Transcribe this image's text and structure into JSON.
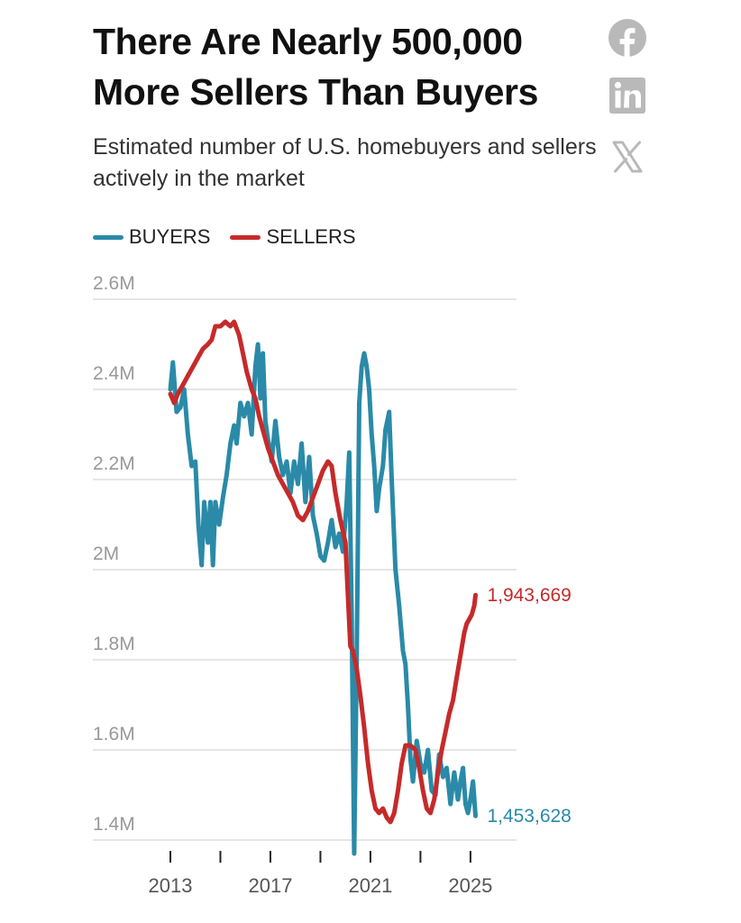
{
  "header": {
    "title": "There Are Nearly 500,000 More Sellers Than Buyers",
    "subtitle": "Estimated number of U.S. homebuyers and sellers actively in the market"
  },
  "share": {
    "facebook_icon": "facebook-icon",
    "linkedin_icon": "linkedin-icon",
    "x_icon": "x-icon"
  },
  "colors": {
    "buyers": "#2a8aa8",
    "sellers": "#c62a2a",
    "grid": "#dddddd",
    "tick_label": "#999999",
    "share_icon": "#b9b9b9"
  },
  "chart_data": {
    "type": "line",
    "title": "There Are Nearly 500,000 More Sellers Than Buyers",
    "subtitle": "Estimated number of U.S. homebuyers and sellers actively in the market",
    "xlabel": "",
    "ylabel": "",
    "xlim": [
      2013,
      2025.4
    ],
    "ylim": [
      1350000,
      2600000
    ],
    "y_ticks": [
      {
        "value": 2600000,
        "label": "2.6M"
      },
      {
        "value": 2400000,
        "label": "2.4M"
      },
      {
        "value": 2200000,
        "label": "2.2M"
      },
      {
        "value": 2000000,
        "label": "2M"
      },
      {
        "value": 1800000,
        "label": "1.8M"
      },
      {
        "value": 1600000,
        "label": "1.6M"
      },
      {
        "value": 1400000,
        "label": "1.4M"
      }
    ],
    "x_ticks": [
      {
        "value": 2013,
        "label": "2013"
      },
      {
        "value": 2015,
        "label": ""
      },
      {
        "value": 2017,
        "label": "2017"
      },
      {
        "value": 2019,
        "label": ""
      },
      {
        "value": 2021,
        "label": "2021"
      },
      {
        "value": 2023,
        "label": ""
      },
      {
        "value": 2025,
        "label": "2025"
      }
    ],
    "grid": true,
    "legend_position": "top-left",
    "series": [
      {
        "name": "BUYERS",
        "key": "buyers",
        "end_label": "1,453,628",
        "points": [
          [
            2013.0,
            2400000
          ],
          [
            2013.1,
            2460000
          ],
          [
            2013.25,
            2350000
          ],
          [
            2013.4,
            2360000
          ],
          [
            2013.55,
            2400000
          ],
          [
            2013.7,
            2300000
          ],
          [
            2013.85,
            2230000
          ],
          [
            2014.0,
            2240000
          ],
          [
            2014.12,
            2100000
          ],
          [
            2014.25,
            2010000
          ],
          [
            2014.35,
            2150000
          ],
          [
            2014.5,
            2060000
          ],
          [
            2014.6,
            2150000
          ],
          [
            2014.7,
            2010000
          ],
          [
            2014.8,
            2150000
          ],
          [
            2014.95,
            2100000
          ],
          [
            2015.1,
            2160000
          ],
          [
            2015.25,
            2210000
          ],
          [
            2015.4,
            2280000
          ],
          [
            2015.55,
            2320000
          ],
          [
            2015.65,
            2280000
          ],
          [
            2015.8,
            2370000
          ],
          [
            2015.95,
            2340000
          ],
          [
            2016.1,
            2370000
          ],
          [
            2016.25,
            2300000
          ],
          [
            2016.4,
            2450000
          ],
          [
            2016.5,
            2500000
          ],
          [
            2016.6,
            2380000
          ],
          [
            2016.7,
            2480000
          ],
          [
            2016.8,
            2330000
          ],
          [
            2016.9,
            2290000
          ],
          [
            2017.05,
            2240000
          ],
          [
            2017.2,
            2330000
          ],
          [
            2017.35,
            2250000
          ],
          [
            2017.5,
            2210000
          ],
          [
            2017.65,
            2240000
          ],
          [
            2017.8,
            2170000
          ],
          [
            2017.95,
            2240000
          ],
          [
            2018.1,
            2190000
          ],
          [
            2018.25,
            2280000
          ],
          [
            2018.4,
            2150000
          ],
          [
            2018.55,
            2250000
          ],
          [
            2018.7,
            2120000
          ],
          [
            2018.85,
            2080000
          ],
          [
            2019.0,
            2030000
          ],
          [
            2019.15,
            2020000
          ],
          [
            2019.3,
            2060000
          ],
          [
            2019.45,
            2110000
          ],
          [
            2019.6,
            2050000
          ],
          [
            2019.75,
            2080000
          ],
          [
            2019.9,
            2040000
          ],
          [
            2020.05,
            2150000
          ],
          [
            2020.15,
            2260000
          ],
          [
            2020.25,
            1900000
          ],
          [
            2020.35,
            1370000
          ],
          [
            2020.45,
            1800000
          ],
          [
            2020.55,
            2370000
          ],
          [
            2020.65,
            2450000
          ],
          [
            2020.75,
            2480000
          ],
          [
            2020.85,
            2450000
          ],
          [
            2020.95,
            2400000
          ],
          [
            2021.05,
            2300000
          ],
          [
            2021.15,
            2230000
          ],
          [
            2021.25,
            2130000
          ],
          [
            2021.35,
            2180000
          ],
          [
            2021.5,
            2230000
          ],
          [
            2021.6,
            2310000
          ],
          [
            2021.75,
            2350000
          ],
          [
            2021.85,
            2200000
          ],
          [
            2022.0,
            2000000
          ],
          [
            2022.15,
            1920000
          ],
          [
            2022.3,
            1820000
          ],
          [
            2022.4,
            1790000
          ],
          [
            2022.5,
            1700000
          ],
          [
            2022.6,
            1580000
          ],
          [
            2022.7,
            1530000
          ],
          [
            2022.85,
            1620000
          ],
          [
            2023.0,
            1570000
          ],
          [
            2023.15,
            1550000
          ],
          [
            2023.3,
            1600000
          ],
          [
            2023.45,
            1510000
          ],
          [
            2023.6,
            1500000
          ],
          [
            2023.75,
            1590000
          ],
          [
            2023.9,
            1540000
          ],
          [
            2024.05,
            1560000
          ],
          [
            2024.2,
            1480000
          ],
          [
            2024.35,
            1550000
          ],
          [
            2024.5,
            1490000
          ],
          [
            2024.6,
            1530000
          ],
          [
            2024.7,
            1560000
          ],
          [
            2024.8,
            1480000
          ],
          [
            2024.9,
            1460000
          ],
          [
            2025.0,
            1490000
          ],
          [
            2025.1,
            1530000
          ],
          [
            2025.2,
            1453628
          ]
        ]
      },
      {
        "name": "SELLERS",
        "key": "sellers",
        "end_label": "1,943,669",
        "points": [
          [
            2013.0,
            2390000
          ],
          [
            2013.15,
            2370000
          ],
          [
            2013.3,
            2390000
          ],
          [
            2013.5,
            2410000
          ],
          [
            2013.7,
            2430000
          ],
          [
            2013.9,
            2450000
          ],
          [
            2014.1,
            2470000
          ],
          [
            2014.3,
            2490000
          ],
          [
            2014.5,
            2500000
          ],
          [
            2014.65,
            2510000
          ],
          [
            2014.8,
            2540000
          ],
          [
            2015.0,
            2540000
          ],
          [
            2015.2,
            2550000
          ],
          [
            2015.4,
            2540000
          ],
          [
            2015.55,
            2550000
          ],
          [
            2015.75,
            2520000
          ],
          [
            2015.9,
            2480000
          ],
          [
            2016.05,
            2440000
          ],
          [
            2016.25,
            2400000
          ],
          [
            2016.4,
            2380000
          ],
          [
            2016.55,
            2340000
          ],
          [
            2016.7,
            2310000
          ],
          [
            2016.9,
            2270000
          ],
          [
            2017.1,
            2240000
          ],
          [
            2017.3,
            2210000
          ],
          [
            2017.5,
            2190000
          ],
          [
            2017.7,
            2170000
          ],
          [
            2017.9,
            2150000
          ],
          [
            2018.1,
            2120000
          ],
          [
            2018.3,
            2110000
          ],
          [
            2018.5,
            2130000
          ],
          [
            2018.7,
            2160000
          ],
          [
            2018.9,
            2190000
          ],
          [
            2019.1,
            2220000
          ],
          [
            2019.3,
            2240000
          ],
          [
            2019.45,
            2230000
          ],
          [
            2019.6,
            2170000
          ],
          [
            2019.8,
            2110000
          ],
          [
            2020.0,
            2060000
          ],
          [
            2020.1,
            1940000
          ],
          [
            2020.2,
            1830000
          ],
          [
            2020.3,
            1820000
          ],
          [
            2020.45,
            1780000
          ],
          [
            2020.6,
            1720000
          ],
          [
            2020.75,
            1650000
          ],
          [
            2020.9,
            1570000
          ],
          [
            2021.05,
            1510000
          ],
          [
            2021.2,
            1470000
          ],
          [
            2021.35,
            1460000
          ],
          [
            2021.5,
            1470000
          ],
          [
            2021.65,
            1450000
          ],
          [
            2021.8,
            1440000
          ],
          [
            2021.95,
            1460000
          ],
          [
            2022.1,
            1510000
          ],
          [
            2022.25,
            1570000
          ],
          [
            2022.4,
            1610000
          ],
          [
            2022.6,
            1610000
          ],
          [
            2022.8,
            1600000
          ],
          [
            2022.95,
            1560000
          ],
          [
            2023.1,
            1510000
          ],
          [
            2023.25,
            1470000
          ],
          [
            2023.4,
            1460000
          ],
          [
            2023.55,
            1490000
          ],
          [
            2023.7,
            1550000
          ],
          [
            2023.85,
            1600000
          ],
          [
            2024.0,
            1640000
          ],
          [
            2024.15,
            1680000
          ],
          [
            2024.3,
            1710000
          ],
          [
            2024.45,
            1760000
          ],
          [
            2024.6,
            1810000
          ],
          [
            2024.75,
            1860000
          ],
          [
            2024.85,
            1880000
          ],
          [
            2024.95,
            1890000
          ],
          [
            2025.05,
            1900000
          ],
          [
            2025.15,
            1920000
          ],
          [
            2025.2,
            1943669
          ]
        ]
      }
    ]
  }
}
